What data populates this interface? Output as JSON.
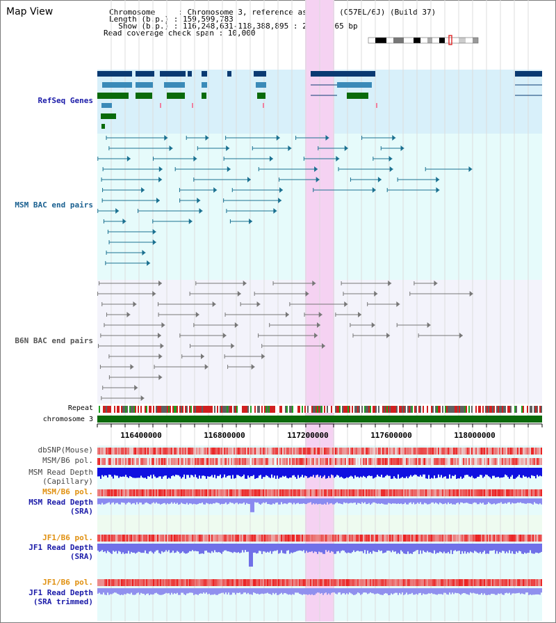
{
  "title": "Map View",
  "header": {
    "chromosome": "Chromosome     : Chromosome 3, reference assembly (C57BL/6J) (Build 37)",
    "length": "Length (b.p.) : 159,599,783",
    "show": "  Show (b.p.) : 116,248,631-118,388,895 : 2,140,265 bp",
    "span": "Read coverage check span : 10,000"
  },
  "tracks": {
    "refseq": "RefSeq Genes",
    "msm_bac": "MSM BAC end pairs",
    "b6n_bac": "B6N BAC end pairs",
    "repeat": "Repeat",
    "chromosome": "chromosome 3",
    "dbsnp": "dbSNP(Mouse)",
    "msm_b6_pol": "MSM/B6 pol.",
    "msm_depth_cap_1": "MSM Read Depth",
    "msm_depth_cap_2": "(Capillary)",
    "msm_b6_pol_sra": "MSM/B6 pol.",
    "msm_depth_sra_1": "MSM Read Depth",
    "msm_depth_sra_2": "(SRA)",
    "jf1_pol_1": "JF1/B6 pol.",
    "jf1_depth_1": "JF1 Read Depth",
    "jf1_depth_1b": "(SRA)",
    "jf1_pol_2": "JF1/B6 pol.",
    "jf1_depth_2": "JF1 Read Depth",
    "jf1_depth_2b": "(SRA trimmed)"
  },
  "axis": {
    "ticks": [
      "116400000",
      "116800000",
      "117200000",
      "117600000",
      "118000000"
    ]
  },
  "colors": {
    "refseq_bg": "#d8f0fa",
    "bac_bg": "#e6fbfb",
    "b6n_bg": "#f3f3fb",
    "highlight": "#f5d2f2",
    "gene_dark": "#0a3a72",
    "gene_mid": "#3a8ab8",
    "gene_green": "#0a6a0a",
    "chromosome": "#0a6a0a"
  }
}
